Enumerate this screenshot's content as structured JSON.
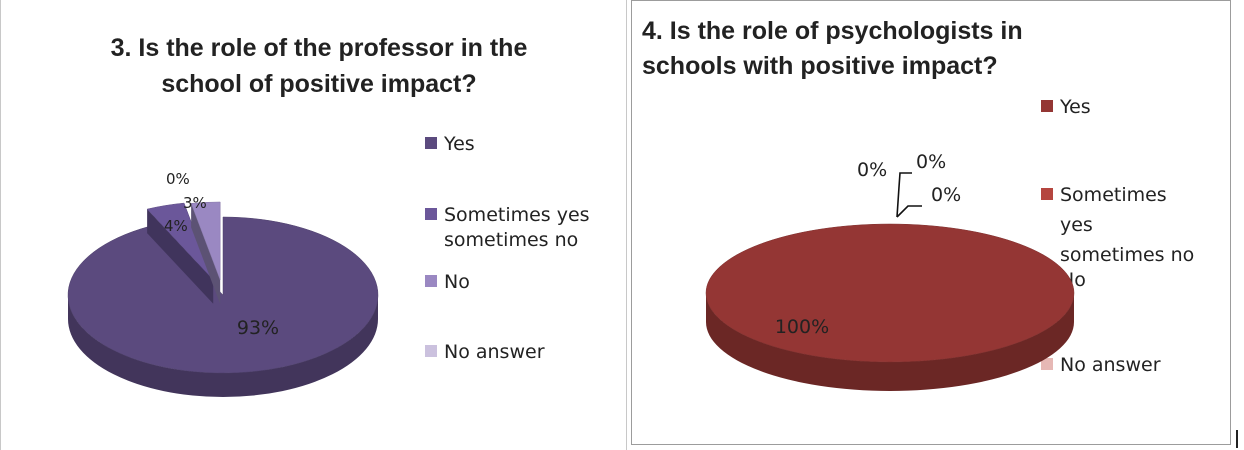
{
  "chart_data": [
    {
      "type": "pie",
      "title": "3. Is the role of the professor in the school of positive impact?",
      "title_lines": [
        "3. Is the role of the professor in the",
        "school of positive impact?"
      ],
      "categories": [
        "Yes",
        "Sometimes yes sometimes no",
        "No",
        "No answer"
      ],
      "legend_lines": [
        [
          "Yes"
        ],
        [
          "Sometimes yes",
          "sometimes no"
        ],
        [
          "No"
        ],
        [
          "No answer"
        ]
      ],
      "values": [
        93,
        4,
        3,
        0
      ],
      "data_labels": [
        "93%",
        "4%",
        "3%",
        "0%"
      ],
      "colors": [
        "#5b4a7e",
        "#6b579a",
        "#9a88c2",
        "#cbc1de"
      ],
      "legend_position": "right",
      "style": "3d-exploded"
    },
    {
      "type": "pie",
      "title": "4. Is the role of psychologists in schools with positive impact?",
      "title_lines": [
        "4. Is the role of psychologists in",
        "schools with positive impact?"
      ],
      "categories": [
        "Yes",
        "Sometimes yes sometimes no",
        "No",
        "No answer"
      ],
      "legend_lines": [
        [
          "Yes"
        ],
        [
          "Sometimes",
          "yes",
          "sometimes no"
        ],
        [
          "No"
        ],
        [
          "No answer"
        ]
      ],
      "values": [
        100,
        0,
        0,
        0
      ],
      "data_labels": [
        "100%",
        "0%",
        "0%",
        "0%"
      ],
      "colors": [
        "#943634",
        "#b5463f",
        "#d7827b",
        "#e6b8b5"
      ],
      "legend_position": "right",
      "style": "3d"
    }
  ]
}
